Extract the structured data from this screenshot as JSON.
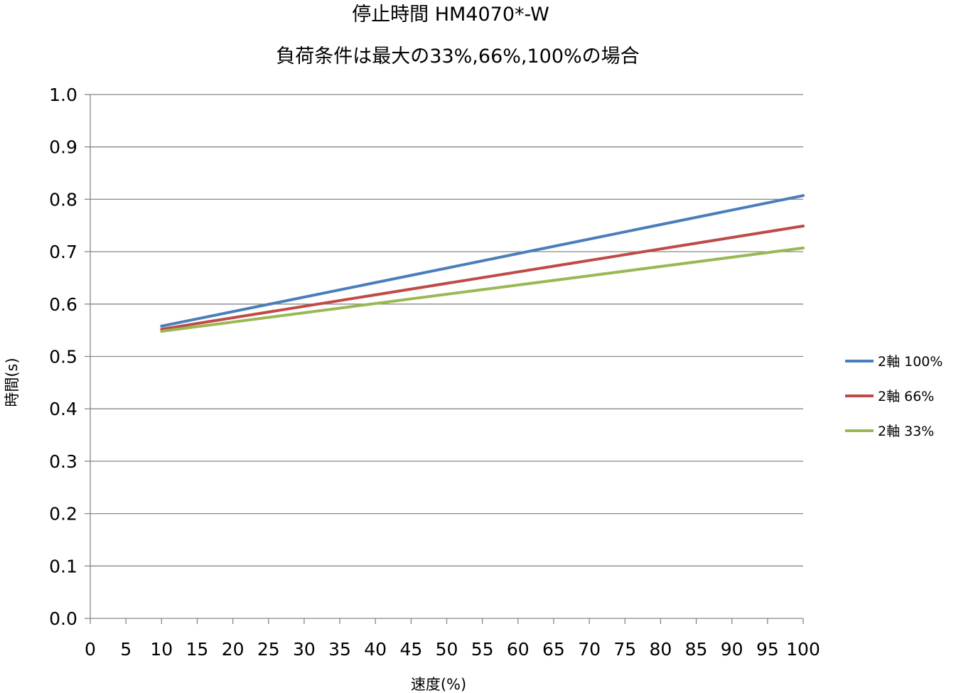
{
  "chart_data": {
    "type": "line",
    "title": "停止時間 HM4070*-W",
    "subtitle": "負荷条件は最大の33%,66%,100%の場合",
    "xlabel": "速度(%)",
    "ylabel": "時間(s)",
    "xlim": [
      0,
      100
    ],
    "ylim": [
      0,
      1.0
    ],
    "xticks": [
      "0",
      "5",
      "10",
      "15",
      "20",
      "25",
      "30",
      "35",
      "40",
      "45",
      "50",
      "55",
      "60",
      "65",
      "70",
      "75",
      "80",
      "85",
      "90",
      "95",
      "100"
    ],
    "yticks": [
      "0.0",
      "0.1",
      "0.2",
      "0.3",
      "0.4",
      "0.5",
      "0.6",
      "0.7",
      "0.8",
      "0.9",
      "1.0"
    ],
    "grid": true,
    "legend_position": "right",
    "x": [
      10,
      100
    ],
    "series": [
      {
        "name": "2軸 100%",
        "color": "#4a7ebb",
        "values": [
          0.558,
          0.807
        ]
      },
      {
        "name": "2軸 66%",
        "color": "#be4b48",
        "values": [
          0.552,
          0.749
        ]
      },
      {
        "name": "2軸 33%",
        "color": "#98b954",
        "values": [
          0.548,
          0.707
        ]
      }
    ]
  }
}
